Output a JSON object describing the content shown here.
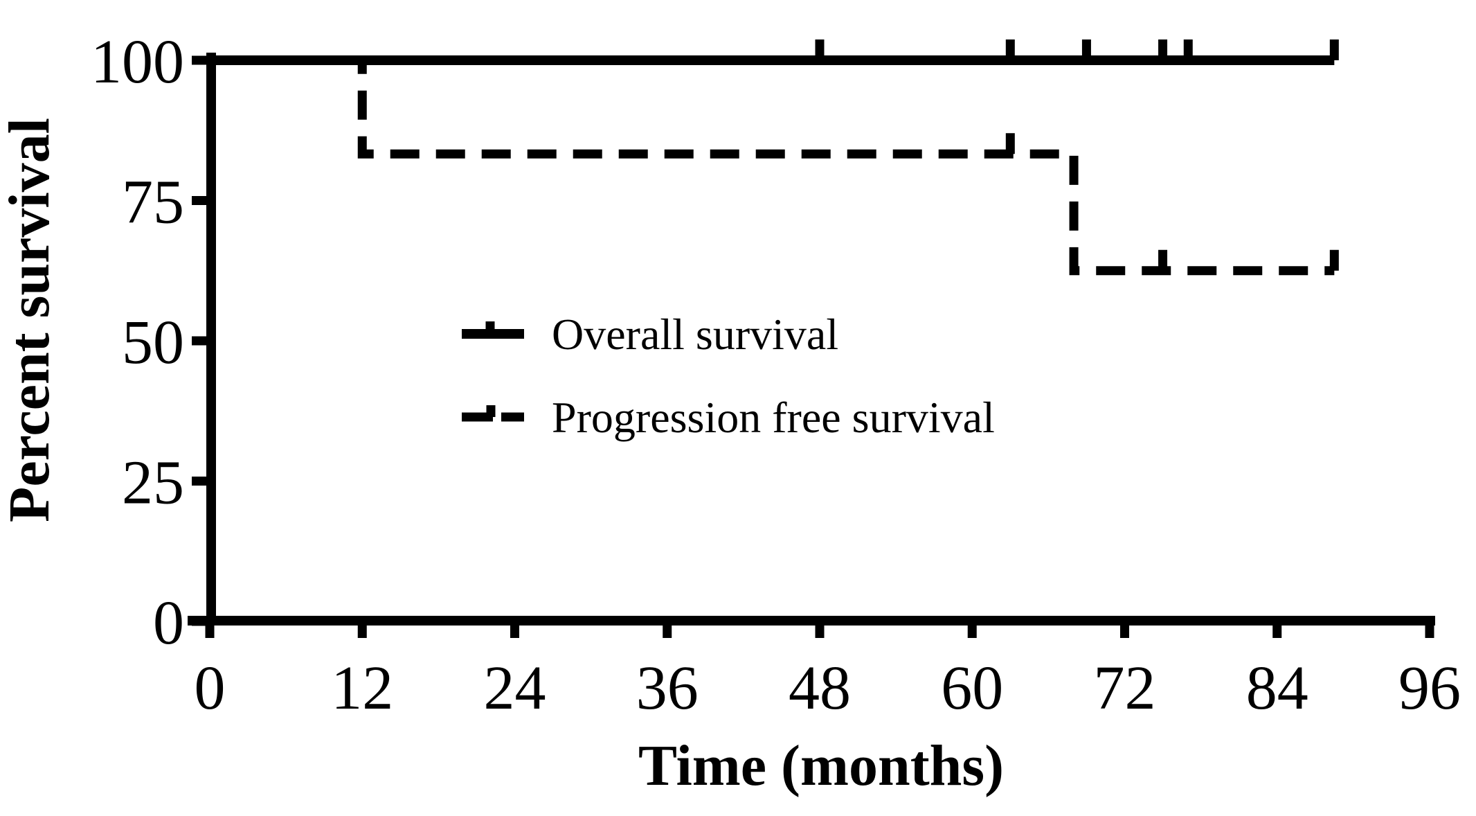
{
  "figure": {
    "background_color": "#ffffff",
    "ink_color": "#000000"
  },
  "chart_data": {
    "type": "line",
    "variant": "kaplan_meier_step",
    "title": "",
    "xlabel": "Time (months)",
    "ylabel": "Percent survival",
    "grid": false,
    "x_axis": {
      "min": 0,
      "max": 96,
      "ticks": [
        0,
        12,
        24,
        36,
        48,
        60,
        72,
        84,
        96
      ]
    },
    "y_axis": {
      "min": 0,
      "max": 100,
      "ticks": [
        100,
        75,
        50,
        25,
        0
      ]
    },
    "legend": {
      "position": "inside-middle-left"
    },
    "series": [
      {
        "name": "Overall survival",
        "line_style": "solid",
        "color": "#000000",
        "x_unit": "months",
        "y_unit": "percent survival",
        "step_points": [
          [
            0,
            100
          ],
          [
            88.5,
            100
          ]
        ],
        "censor_tick_marks": [
          [
            48,
            100
          ],
          [
            63,
            100
          ],
          [
            69,
            100
          ],
          [
            75,
            100
          ],
          [
            77,
            100
          ],
          [
            88.5,
            100
          ]
        ]
      },
      {
        "name": "Progression free survival",
        "line_style": "dashed",
        "color": "#000000",
        "x_unit": "months",
        "y_unit": "percent survival",
        "step_points": [
          [
            0,
            100
          ],
          [
            12,
            100
          ],
          [
            12,
            83.3
          ],
          [
            68,
            83.3
          ],
          [
            68,
            62.5
          ],
          [
            88.5,
            62.5
          ]
        ],
        "censor_tick_marks": [
          [
            63,
            83.3
          ],
          [
            75,
            62.5
          ],
          [
            88.5,
            62.5
          ]
        ]
      }
    ]
  }
}
